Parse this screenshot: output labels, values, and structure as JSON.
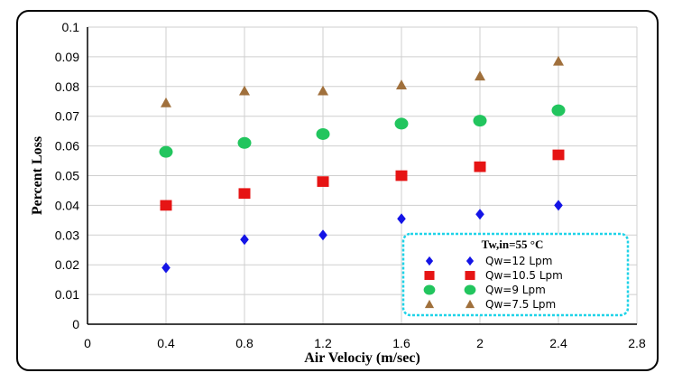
{
  "chart_data": {
    "type": "scatter",
    "title": "",
    "xlabel": "Air Velociy (m/sec)",
    "ylabel": "Percent Loss",
    "xlim": [
      0,
      2.8
    ],
    "ylim": [
      0,
      0.1
    ],
    "xticks": [
      "0",
      "0.4",
      "0.8",
      "1.2",
      "1.6",
      "2",
      "2.4",
      "2.8"
    ],
    "yticks": [
      "0",
      "0.01",
      "0.02",
      "0.03",
      "0.04",
      "0.05",
      "0.06",
      "0.07",
      "0.08",
      "0.09",
      "0.1"
    ],
    "grid": true,
    "legend_position": "bottom-right",
    "legend_title": "Tw,in=55 °C",
    "series": [
      {
        "name": "Qw=12 Lpm",
        "marker": "diamond",
        "color": "#1414e6",
        "x": [
          0.4,
          0.8,
          1.2,
          1.6,
          2.0,
          2.4
        ],
        "y": [
          0.019,
          0.0285,
          0.03,
          0.0355,
          0.037,
          0.04
        ]
      },
      {
        "name": "Qw=10.5 Lpm",
        "marker": "square",
        "color": "#e61414",
        "x": [
          0.4,
          0.8,
          1.2,
          1.6,
          2.0,
          2.4
        ],
        "y": [
          0.04,
          0.044,
          0.048,
          0.05,
          0.053,
          0.057
        ]
      },
      {
        "name": "Qw=9 Lpm",
        "marker": "circle",
        "color": "#22c55e",
        "x": [
          0.4,
          0.8,
          1.2,
          1.6,
          2.0,
          2.4
        ],
        "y": [
          0.058,
          0.061,
          0.064,
          0.0675,
          0.0685,
          0.072
        ]
      },
      {
        "name": "Qw=7.5 Lpm",
        "marker": "triangle",
        "color": "#a0703c",
        "x": [
          0.4,
          0.8,
          1.2,
          1.6,
          2.0,
          2.4
        ],
        "y": [
          0.0745,
          0.0785,
          0.0785,
          0.0805,
          0.0835,
          0.0885
        ]
      }
    ],
    "legend_border_color": "#1fd3e8"
  }
}
